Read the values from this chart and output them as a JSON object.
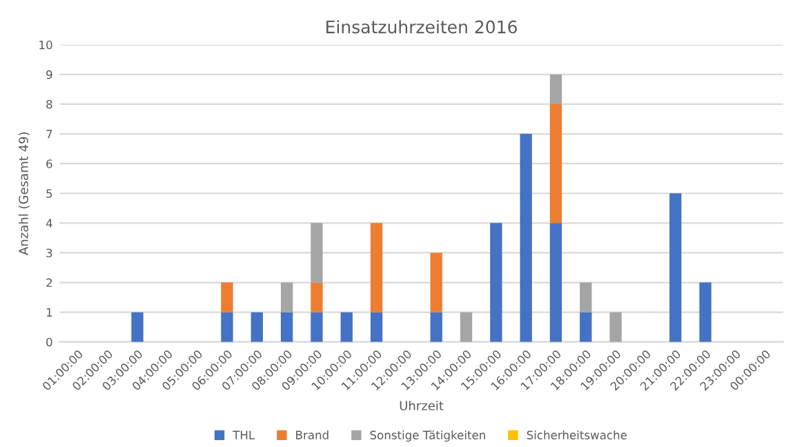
{
  "chart_data": {
    "type": "bar",
    "title": "Einsatzuhrzeiten 2016",
    "xlabel": "Uhrzeit",
    "ylabel": "Anzahl (Gesamt 49)",
    "categories": [
      "01:00:00",
      "02:00:00",
      "03:00:00",
      "04:00:00",
      "05:00:00",
      "06:00:00",
      "07:00:00",
      "08:00:00",
      "09:00:00",
      "10:00:00",
      "11:00:00",
      "12:00:00",
      "13:00:00",
      "14:00:00",
      "15:00:00",
      "16:00:00",
      "17:00:00",
      "18:00:00",
      "19:00:00",
      "20:00:00",
      "21:00:00",
      "22:00:00",
      "23:00:00",
      "00:00:00"
    ],
    "stacked": true,
    "series": [
      {
        "name": "THL",
        "color": "#4472c4",
        "values": [
          0,
          0,
          1,
          0,
          0,
          1,
          1,
          1,
          1,
          1,
          1,
          0,
          1,
          0,
          4,
          7,
          4,
          1,
          0,
          0,
          5,
          2,
          0,
          0
        ]
      },
      {
        "name": "Brand",
        "color": "#ed7d31",
        "values": [
          0,
          0,
          0,
          0,
          0,
          1,
          0,
          0,
          1,
          0,
          3,
          0,
          2,
          0,
          0,
          0,
          4,
          0,
          0,
          0,
          0,
          0,
          0,
          0
        ]
      },
      {
        "name": "Sonstige Tätigkeiten",
        "color": "#a5a5a5",
        "values": [
          0,
          0,
          0,
          0,
          0,
          0,
          0,
          1,
          2,
          0,
          0,
          0,
          0,
          1,
          0,
          0,
          1,
          1,
          1,
          0,
          0,
          0,
          0,
          0
        ]
      },
      {
        "name": "Sicherheitswache",
        "color": "#ffc000",
        "values": [
          0,
          0,
          0,
          0,
          0,
          0,
          0,
          0,
          0,
          0,
          0,
          0,
          0,
          0,
          0,
          0,
          0,
          0,
          0,
          0,
          0,
          0,
          0,
          0
        ]
      }
    ],
    "ylim": [
      0,
      10
    ],
    "yticks": [
      0,
      1,
      2,
      3,
      4,
      5,
      6,
      7,
      8,
      9,
      10
    ],
    "grid": "y",
    "legend": "bottom"
  }
}
